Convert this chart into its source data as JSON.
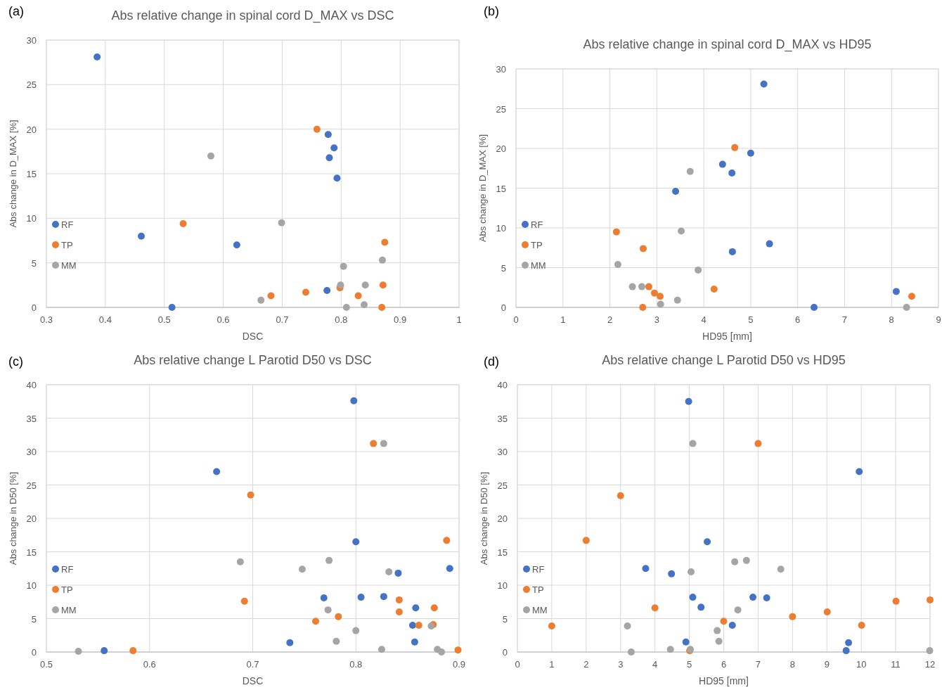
{
  "chart_data": [
    {
      "type": "scatter",
      "title": "Abs relative change in spinal cord D_MAX vs DSC",
      "xlabel": "DSC",
      "ylabel": "Abs change in D_MAX [%]",
      "annotations": [
        "(a)"
      ],
      "xlim": [
        0.3,
        1
      ],
      "xticks": [
        0.3,
        0.4,
        0.5,
        0.6,
        0.7,
        0.8,
        0.9,
        1
      ],
      "ylim": [
        0,
        30
      ],
      "yticks": [
        0,
        5,
        10,
        15,
        20,
        25,
        30
      ],
      "grid": true,
      "legend": "left",
      "marker": "circle",
      "series": [
        {
          "name": "RF",
          "color": "#4472c4",
          "x": [
            0.386,
            0.461,
            0.513,
            0.623,
            0.778,
            0.788,
            0.78,
            0.793,
            0.776
          ],
          "values": [
            28.1,
            8.0,
            0,
            7.0,
            19.4,
            17.9,
            16.8,
            14.5,
            1.9
          ]
        },
        {
          "name": "TP",
          "color": "#ed7d31",
          "x": [
            0.759,
            0.532,
            0.874,
            0.681,
            0.74,
            0.798,
            0.829,
            0.871,
            0.869
          ],
          "values": [
            20,
            9.4,
            7.3,
            1.3,
            1.7,
            2.2,
            1.3,
            2.5,
            0
          ]
        },
        {
          "name": "MM",
          "color": "#a5a5a5",
          "x": [
            0.579,
            0.699,
            0.804,
            0.87,
            0.799,
            0.841,
            0.664,
            0.839,
            0.809
          ],
          "values": [
            17.0,
            9.5,
            4.6,
            5.3,
            2.5,
            2.5,
            0.8,
            0.3,
            0
          ]
        }
      ]
    },
    {
      "type": "scatter",
      "title": "Abs relative change in spinal cord D_MAX vs HD95",
      "xlabel": "HD95 [mm]",
      "ylabel": "Abs change in D_MAX [%]",
      "annotations": [
        "(b)"
      ],
      "xlim": [
        0,
        9
      ],
      "xticks": [
        0,
        1,
        2,
        3,
        4,
        5,
        6,
        7,
        8,
        9
      ],
      "ylim": [
        0,
        30
      ],
      "yticks": [
        0,
        5,
        10,
        15,
        20,
        25,
        30
      ],
      "grid": true,
      "legend": "left",
      "marker": "circle",
      "series": [
        {
          "name": "RF",
          "color": "#4472c4",
          "x": [
            5.28,
            5.0,
            4.4,
            4.6,
            3.4,
            5.4,
            4.61,
            8.1,
            6.35
          ],
          "values": [
            28.1,
            19.4,
            18.0,
            16.9,
            14.6,
            8.0,
            7.0,
            2.0,
            0
          ]
        },
        {
          "name": "TP",
          "color": "#ed7d31",
          "x": [
            4.66,
            2.14,
            2.71,
            2.83,
            2.95,
            3.07,
            4.22,
            2.7,
            8.43
          ],
          "values": [
            20.1,
            9.5,
            7.4,
            2.6,
            1.8,
            1.4,
            2.3,
            0,
            1.4
          ]
        },
        {
          "name": "MM",
          "color": "#a5a5a5",
          "x": [
            3.71,
            3.52,
            2.17,
            3.88,
            2.48,
            2.68,
            3.44,
            3.08,
            8.32
          ],
          "values": [
            17.1,
            9.6,
            5.4,
            4.7,
            2.6,
            2.6,
            0.9,
            0.4,
            0
          ]
        }
      ]
    },
    {
      "type": "scatter",
      "title": "Abs relative change L Parotid D50 vs DSC",
      "xlabel": "DSC",
      "ylabel": "Abs change in D50 [%]",
      "annotations": [
        "(c)"
      ],
      "xlim": [
        0.5,
        0.9
      ],
      "xticks": [
        0.5,
        0.6,
        0.7,
        0.8,
        0.9
      ],
      "ylim": [
        0,
        40
      ],
      "yticks": [
        0,
        5,
        10,
        15,
        20,
        25,
        30,
        35,
        40
      ],
      "grid": true,
      "legend": "left",
      "marker": "circle",
      "series": [
        {
          "name": "RF",
          "color": "#4472c4",
          "x": [
            0.798,
            0.665,
            0.8,
            0.891,
            0.841,
            0.769,
            0.805,
            0.827,
            0.858,
            0.855,
            0.736,
            0.857,
            0.556
          ],
          "values": [
            37.6,
            27.0,
            16.5,
            12.5,
            11.8,
            8.1,
            8.2,
            8.3,
            6.6,
            4.0,
            1.4,
            1.5,
            0.2
          ]
        },
        {
          "name": "TP",
          "color": "#ed7d31",
          "x": [
            0.817,
            0.698,
            0.888,
            0.692,
            0.842,
            0.842,
            0.876,
            0.783,
            0.761,
            0.861,
            0.875,
            0.584,
            0.899
          ],
          "values": [
            31.2,
            23.5,
            16.7,
            7.6,
            7.8,
            6.0,
            6.6,
            5.3,
            4.6,
            4.0,
            4.1,
            0.2,
            0.3
          ]
        },
        {
          "name": "MM",
          "color": "#a5a5a5",
          "x": [
            0.827,
            0.688,
            0.774,
            0.748,
            0.832,
            0.773,
            0.873,
            0.8,
            0.781,
            0.825,
            0.879,
            0.883,
            0.531
          ],
          "values": [
            31.2,
            13.5,
            13.7,
            12.4,
            12.0,
            6.3,
            3.9,
            3.2,
            1.6,
            0.4,
            0.4,
            0,
            0.1
          ]
        }
      ]
    },
    {
      "type": "scatter",
      "title": "Abs relative change L Parotid D50 vs HD95",
      "xlabel": "HD95 [mm]",
      "ylabel": "Abs change in D50 [%]",
      "annotations": [
        "(d)"
      ],
      "xlim": [
        0,
        12
      ],
      "xticks": [
        0,
        1,
        2,
        3,
        4,
        5,
        6,
        7,
        8,
        9,
        10,
        11,
        12
      ],
      "ylim": [
        0,
        40
      ],
      "yticks": [
        0,
        5,
        10,
        15,
        20,
        25,
        30,
        35,
        40
      ],
      "grid": true,
      "legend": "left",
      "marker": "circle",
      "series": [
        {
          "name": "RF",
          "color": "#4472c4",
          "x": [
            4.98,
            9.94,
            5.52,
            3.73,
            4.48,
            5.1,
            6.85,
            7.25,
            5.34,
            6.25,
            4.9,
            9.63,
            9.56
          ],
          "values": [
            37.5,
            27.0,
            16.5,
            12.5,
            11.7,
            8.2,
            8.2,
            8.1,
            6.7,
            4.0,
            1.5,
            1.4,
            0.2
          ]
        },
        {
          "name": "TP",
          "color": "#ed7d31",
          "x": [
            7.0,
            3.0,
            2.0,
            4.0,
            1.0,
            6.0,
            8.0,
            9.01,
            10.01,
            11.01,
            12.0,
            5.01
          ],
          "values": [
            31.2,
            23.4,
            16.7,
            6.6,
            3.9,
            4.6,
            5.3,
            6.0,
            4.0,
            7.6,
            7.8,
            0.2
          ]
        },
        {
          "name": "MM",
          "color": "#a5a5a5",
          "x": [
            5.1,
            6.32,
            6.66,
            7.66,
            5.05,
            6.41,
            3.2,
            5.81,
            5.86,
            4.45,
            5.03,
            3.31,
            11.99
          ],
          "values": [
            31.2,
            13.5,
            13.7,
            12.4,
            12.0,
            6.3,
            3.9,
            3.2,
            1.6,
            0.4,
            0.4,
            0,
            0.2
          ]
        }
      ]
    }
  ]
}
